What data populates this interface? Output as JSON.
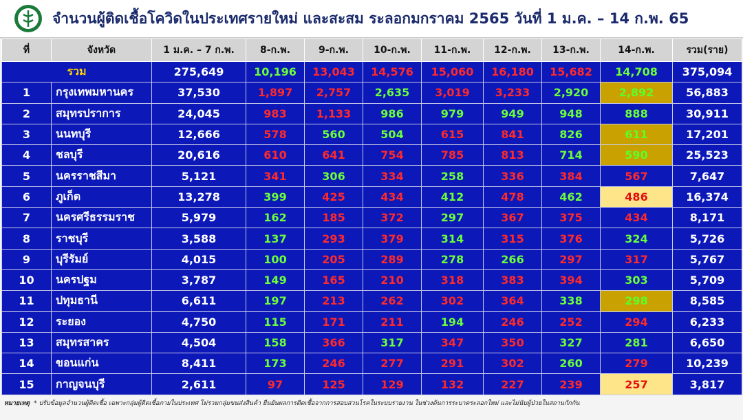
{
  "header": {
    "title": "จำนวนผู้ติดเชื้อโควิดในประเทศรายใหม่ และสะสม ระลอกมกราคม 2565 วันที่ 1 ม.ค. – 14 ก.พ. 65"
  },
  "table": {
    "columns": [
      "ที่",
      "จังหวัด",
      "1 ม.ค. – 7 ก.พ.",
      "8-ก.พ.",
      "9-ก.พ.",
      "10-ก.พ.",
      "11-ก.พ.",
      "12-ก.พ.",
      "13-ก.พ.",
      "14-ก.พ.",
      "รวม(ราย)"
    ],
    "total": {
      "label": "รวม",
      "cells": [
        "275,649",
        "10,196",
        "13,043",
        "14,576",
        "15,060",
        "16,180",
        "15,682",
        "14,708",
        "375,094"
      ],
      "tones": [
        "green",
        "red",
        "red",
        "red",
        "red",
        "red",
        "green"
      ]
    },
    "rows": [
      {
        "cells": [
          "1",
          "กรุงเทพมหานคร",
          "37,530",
          "1,897",
          "2,757",
          "2,635",
          "3,019",
          "3,233",
          "2,920",
          "2,892",
          "56,883"
        ],
        "tones": [
          "red",
          "red",
          "green",
          "red",
          "red",
          "green",
          "gold"
        ]
      },
      {
        "cells": [
          "2",
          "สมุทรปราการ",
          "24,045",
          "983",
          "1,133",
          "986",
          "979",
          "949",
          "948",
          "888",
          "30,911"
        ],
        "tones": [
          "red",
          "red",
          "green",
          "green",
          "green",
          "green",
          "green"
        ]
      },
      {
        "cells": [
          "3",
          "นนทบุรี",
          "12,666",
          "578",
          "560",
          "504",
          "615",
          "841",
          "826",
          "611",
          "17,201"
        ],
        "tones": [
          "red",
          "green",
          "green",
          "red",
          "red",
          "green",
          "gold"
        ]
      },
      {
        "cells": [
          "4",
          "ชลบุรี",
          "20,616",
          "610",
          "641",
          "754",
          "785",
          "813",
          "714",
          "590",
          "25,523"
        ],
        "tones": [
          "red",
          "red",
          "red",
          "red",
          "red",
          "green",
          "gold"
        ]
      },
      {
        "cells": [
          "5",
          "นครราชสีมา",
          "5,121",
          "341",
          "306",
          "334",
          "258",
          "336",
          "384",
          "567",
          "7,647"
        ],
        "tones": [
          "red",
          "green",
          "red",
          "green",
          "red",
          "red",
          "red"
        ]
      },
      {
        "cells": [
          "6",
          "ภูเก็ต",
          "13,278",
          "399",
          "425",
          "434",
          "412",
          "478",
          "462",
          "486",
          "16,374"
        ],
        "tones": [
          "green",
          "red",
          "red",
          "green",
          "red",
          "green",
          "pale"
        ]
      },
      {
        "cells": [
          "7",
          "นครศรีธรรมราช",
          "5,979",
          "162",
          "185",
          "372",
          "297",
          "367",
          "375",
          "434",
          "8,171"
        ],
        "tones": [
          "green",
          "red",
          "red",
          "green",
          "red",
          "red",
          "red"
        ]
      },
      {
        "cells": [
          "8",
          "ราชบุรี",
          "3,588",
          "137",
          "293",
          "379",
          "314",
          "315",
          "376",
          "324",
          "5,726"
        ],
        "tones": [
          "green",
          "red",
          "red",
          "green",
          "red",
          "red",
          "green"
        ]
      },
      {
        "cells": [
          "9",
          "บุรีรัมย์",
          "4,015",
          "100",
          "205",
          "289",
          "278",
          "266",
          "297",
          "317",
          "5,767"
        ],
        "tones": [
          "green",
          "red",
          "red",
          "green",
          "green",
          "red",
          "red"
        ]
      },
      {
        "cells": [
          "10",
          "นครปฐม",
          "3,787",
          "149",
          "165",
          "210",
          "318",
          "383",
          "394",
          "303",
          "5,709"
        ],
        "tones": [
          "green",
          "red",
          "red",
          "red",
          "red",
          "red",
          "green"
        ]
      },
      {
        "cells": [
          "11",
          "ปทุมธานี",
          "6,611",
          "197",
          "213",
          "262",
          "302",
          "364",
          "338",
          "298",
          "8,585"
        ],
        "tones": [
          "green",
          "red",
          "red",
          "red",
          "red",
          "green",
          "gold"
        ]
      },
      {
        "cells": [
          "12",
          "ระยอง",
          "4,750",
          "115",
          "171",
          "211",
          "194",
          "246",
          "252",
          "294",
          "6,233"
        ],
        "tones": [
          "green",
          "red",
          "red",
          "green",
          "red",
          "red",
          "red"
        ]
      },
      {
        "cells": [
          "13",
          "สมุทรสาคร",
          "4,504",
          "158",
          "366",
          "317",
          "347",
          "350",
          "327",
          "281",
          "6,650"
        ],
        "tones": [
          "green",
          "red",
          "green",
          "red",
          "red",
          "green",
          "green"
        ]
      },
      {
        "cells": [
          "14",
          "ขอนแก่น",
          "8,411",
          "173",
          "246",
          "277",
          "291",
          "302",
          "260",
          "279",
          "10,239"
        ],
        "tones": [
          "green",
          "red",
          "red",
          "red",
          "red",
          "green",
          "red"
        ]
      },
      {
        "cells": [
          "15",
          "กาญจนบุรี",
          "2,611",
          "97",
          "125",
          "129",
          "132",
          "227",
          "239",
          "257",
          "3,817"
        ],
        "tones": [
          "red",
          "red",
          "red",
          "red",
          "red",
          "red",
          "pale"
        ]
      }
    ]
  },
  "footer": {
    "label": "หมายเหตุ",
    "note": "* ปรับข้อมูลจำนวนผู้ติดเชื้อ เฉพาะกลุ่มผู้ติดเชื้อภายในประเทศ ไม่รวมกลุ่มขนส่งสินค้า ยืนยันผลการติดเชื้อจากการสอบสวนโรคในระบบรายงาน ในช่วงต้นการระบาดระลอกใหม่ และไม่นับผู้ป่วยในสถานกักกัน"
  }
}
